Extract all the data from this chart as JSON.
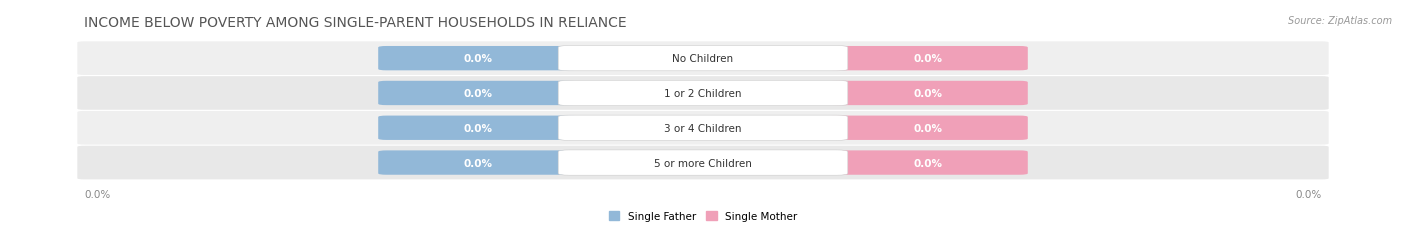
{
  "title": "INCOME BELOW POVERTY AMONG SINGLE-PARENT HOUSEHOLDS IN RELIANCE",
  "source": "Source: ZipAtlas.com",
  "categories": [
    "No Children",
    "1 or 2 Children",
    "3 or 4 Children",
    "5 or more Children"
  ],
  "single_father_values": [
    0.0,
    0.0,
    0.0,
    0.0
  ],
  "single_mother_values": [
    0.0,
    0.0,
    0.0,
    0.0
  ],
  "father_color": "#92b8d8",
  "mother_color": "#f0a0b8",
  "row_bg_color_odd": "#efefef",
  "row_bg_color_even": "#e8e8e8",
  "title_fontsize": 10,
  "label_fontsize": 7.5,
  "tick_fontsize": 7.5,
  "source_fontsize": 7,
  "figsize": [
    14.06,
    2.32
  ],
  "dpi": 100
}
